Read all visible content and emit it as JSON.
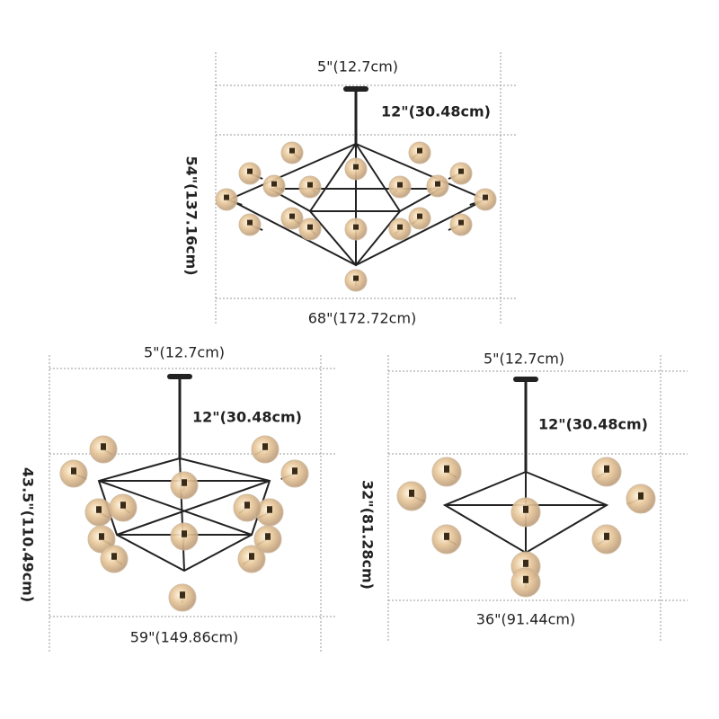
{
  "panels": [
    {
      "top_width": "5\"(12.7cm)",
      "rod_length": "12\"(30.48cm)",
      "height": "54\"(137.16cm)",
      "width": "68\"(172.72cm)"
    },
    {
      "top_width": "5\"(12.7cm)",
      "rod_length": "12\"(30.48cm)",
      "height": "43.5\"(110.49cm)",
      "width": "59\"(149.86cm)"
    },
    {
      "top_width": "5\"(12.7cm)",
      "rod_length": "12\"(30.48cm)",
      "height": "32\"(81.28cm)",
      "width": "36\"(91.44cm)"
    }
  ]
}
